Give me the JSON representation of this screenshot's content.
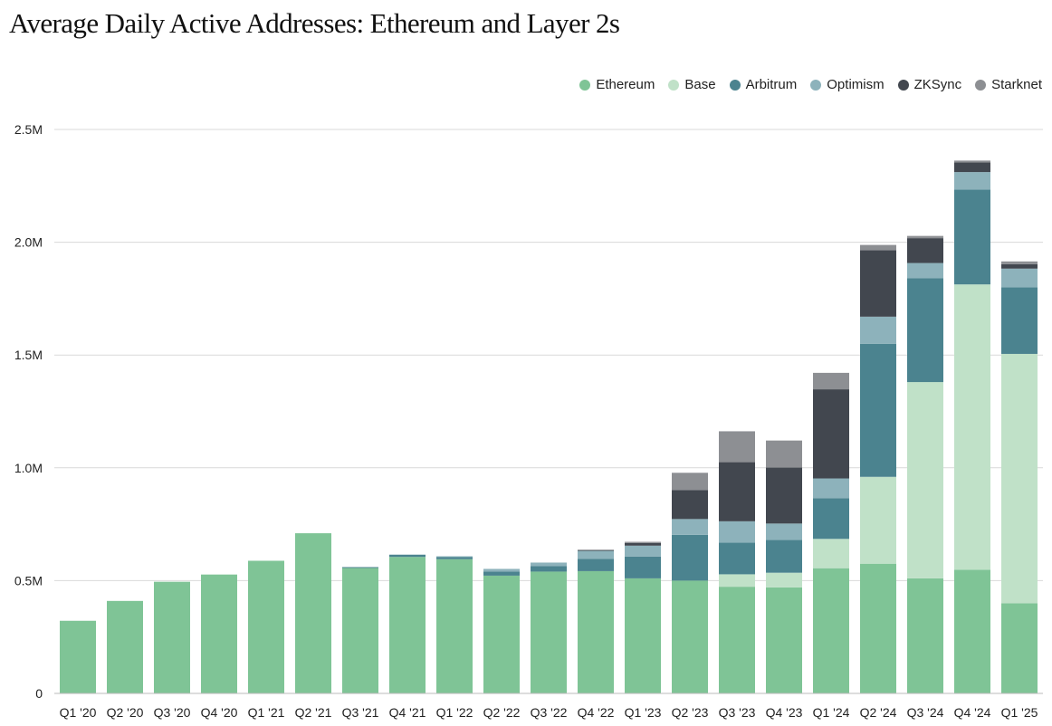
{
  "chart_data": {
    "type": "bar",
    "stacked": true,
    "title": "Average Daily Active Addresses: Ethereum and Layer 2s",
    "xlabel": "",
    "ylabel": "",
    "ylim": [
      0,
      2500000
    ],
    "yticks": [
      0,
      500000,
      1000000,
      1500000,
      2000000,
      2500000
    ],
    "ytick_labels": [
      "0",
      "0.5M",
      "1.0M",
      "1.5M",
      "2.0M",
      "2.5M"
    ],
    "grid": true,
    "legend_position": "top-right",
    "categories": [
      "Q1 '20",
      "Q2 '20",
      "Q3 '20",
      "Q4 '20",
      "Q1 '21",
      "Q2 '21",
      "Q3 '21",
      "Q4 '21",
      "Q1 '22",
      "Q2 '22",
      "Q3 '22",
      "Q4 '22",
      "Q1 '23",
      "Q2 '23",
      "Q3 '23",
      "Q4 '23",
      "Q1 '24",
      "Q2 '24",
      "Q3 '24",
      "Q4 '24",
      "Q1 '25"
    ],
    "series": [
      {
        "name": "Ethereum",
        "color": "#7fc496",
        "values": [
          322000,
          410000,
          495000,
          527000,
          588000,
          710000,
          556000,
          605000,
          595000,
          522000,
          540000,
          542000,
          510000,
          500000,
          473000,
          470000,
          555000,
          575000,
          510000,
          548000,
          400000
        ]
      },
      {
        "name": "Base",
        "color": "#c0e1c8",
        "values": [
          0,
          0,
          0,
          0,
          0,
          0,
          0,
          0,
          0,
          0,
          0,
          0,
          0,
          0,
          55000,
          65000,
          130000,
          385000,
          870000,
          1265000,
          1105000
        ]
      },
      {
        "name": "Arbitrum",
        "color": "#4b838f",
        "values": [
          0,
          0,
          0,
          0,
          0,
          0,
          4000,
          10000,
          10000,
          18000,
          25000,
          55000,
          97000,
          203000,
          140000,
          145000,
          180000,
          590000,
          460000,
          420000,
          295000
        ]
      },
      {
        "name": "Optimism",
        "color": "#8db2bb",
        "values": [
          0,
          0,
          0,
          0,
          0,
          0,
          0,
          0,
          3000,
          12000,
          15000,
          35000,
          48000,
          70000,
          95000,
          73000,
          88000,
          120000,
          68000,
          78000,
          83000
        ]
      },
      {
        "name": "ZKSync",
        "color": "#42474f",
        "values": [
          0,
          0,
          0,
          0,
          0,
          0,
          0,
          0,
          0,
          0,
          0,
          4000,
          12000,
          128000,
          262000,
          248000,
          395000,
          295000,
          110000,
          43000,
          20000
        ]
      },
      {
        "name": "Starknet",
        "color": "#8d8f93",
        "values": [
          0,
          0,
          0,
          0,
          0,
          0,
          0,
          0,
          0,
          0,
          0,
          0,
          5000,
          77000,
          137000,
          120000,
          73000,
          23000,
          10000,
          8000,
          12000
        ]
      }
    ]
  }
}
